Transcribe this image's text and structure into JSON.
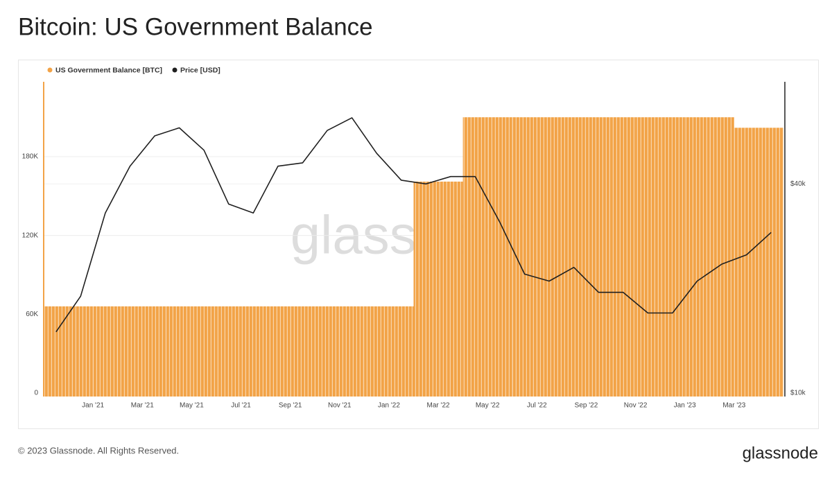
{
  "chart_data": {
    "type": "bar-line",
    "title": "Bitcoin: US Government Balance",
    "watermark": "glassnode",
    "footer": "© 2023 Glassnode. All Rights Reserved.",
    "logo": "glassnode",
    "x": [
      "2020-11",
      "2020-12",
      "2021-01",
      "2021-02",
      "2021-03",
      "2021-04",
      "2021-05",
      "2021-06",
      "2021-07",
      "2021-08",
      "2021-09",
      "2021-10",
      "2021-11",
      "2021-12",
      "2022-01",
      "2022-02",
      "2022-03",
      "2022-04",
      "2022-05",
      "2022-06",
      "2022-07",
      "2022-08",
      "2022-09",
      "2022-10",
      "2022-11",
      "2022-12",
      "2023-01",
      "2023-02",
      "2023-03",
      "2023-04"
    ],
    "xlim": [
      "2020-11",
      "2023-05"
    ],
    "xticks": [
      {
        "value": "2021-01",
        "label": "Jan '21"
      },
      {
        "value": "2021-03",
        "label": "Mar '21"
      },
      {
        "value": "2021-05",
        "label": "May '21"
      },
      {
        "value": "2021-07",
        "label": "Jul '21"
      },
      {
        "value": "2021-09",
        "label": "Sep '21"
      },
      {
        "value": "2021-11",
        "label": "Nov '21"
      },
      {
        "value": "2022-01",
        "label": "Jan '22"
      },
      {
        "value": "2022-03",
        "label": "Mar '22"
      },
      {
        "value": "2022-05",
        "label": "May '22"
      },
      {
        "value": "2022-07",
        "label": "Jul '22"
      },
      {
        "value": "2022-09",
        "label": "Sep '22"
      },
      {
        "value": "2022-11",
        "label": "Nov '22"
      },
      {
        "value": "2023-01",
        "label": "Jan '23"
      },
      {
        "value": "2023-03",
        "label": "Mar '23"
      }
    ],
    "ylim": [
      0,
      237000
    ],
    "yticks": [
      0,
      {
        "value": 60000,
        "label": "60K"
      },
      {
        "value": 120000,
        "label": "120K"
      },
      {
        "value": 180000,
        "label": "180K"
      }
    ],
    "y2lim": [
      10000,
      78700
    ],
    "y2scale": "log",
    "y2ticks": [
      {
        "value": 10000,
        "label": "$10k"
      },
      {
        "value": 40000,
        "label": "$40k"
      }
    ],
    "grid": true,
    "legend": "top-left",
    "series": [
      {
        "name": "US Government Balance [BTC]",
        "color": "#f2a347",
        "kind": "bar",
        "values": [
          66000,
          66000,
          66000,
          66000,
          66000,
          66000,
          66000,
          66000,
          66000,
          66000,
          66000,
          66000,
          66000,
          66000,
          66000,
          161000,
          161000,
          210000,
          210000,
          210000,
          210000,
          210000,
          210000,
          210000,
          210000,
          210000,
          210000,
          210000,
          202000,
          202000
        ]
      },
      {
        "name": "Price [USD]",
        "color": "#1f1f1f",
        "kind": "line",
        "axis": "y2",
        "values": [
          15000,
          19000,
          33000,
          45000,
          55000,
          58000,
          50000,
          35000,
          33000,
          45000,
          46000,
          57000,
          62000,
          49000,
          41000,
          40000,
          42000,
          42000,
          31000,
          22000,
          21000,
          23000,
          19500,
          19500,
          17000,
          17000,
          21000,
          23500,
          25000,
          29000
        ]
      }
    ]
  }
}
